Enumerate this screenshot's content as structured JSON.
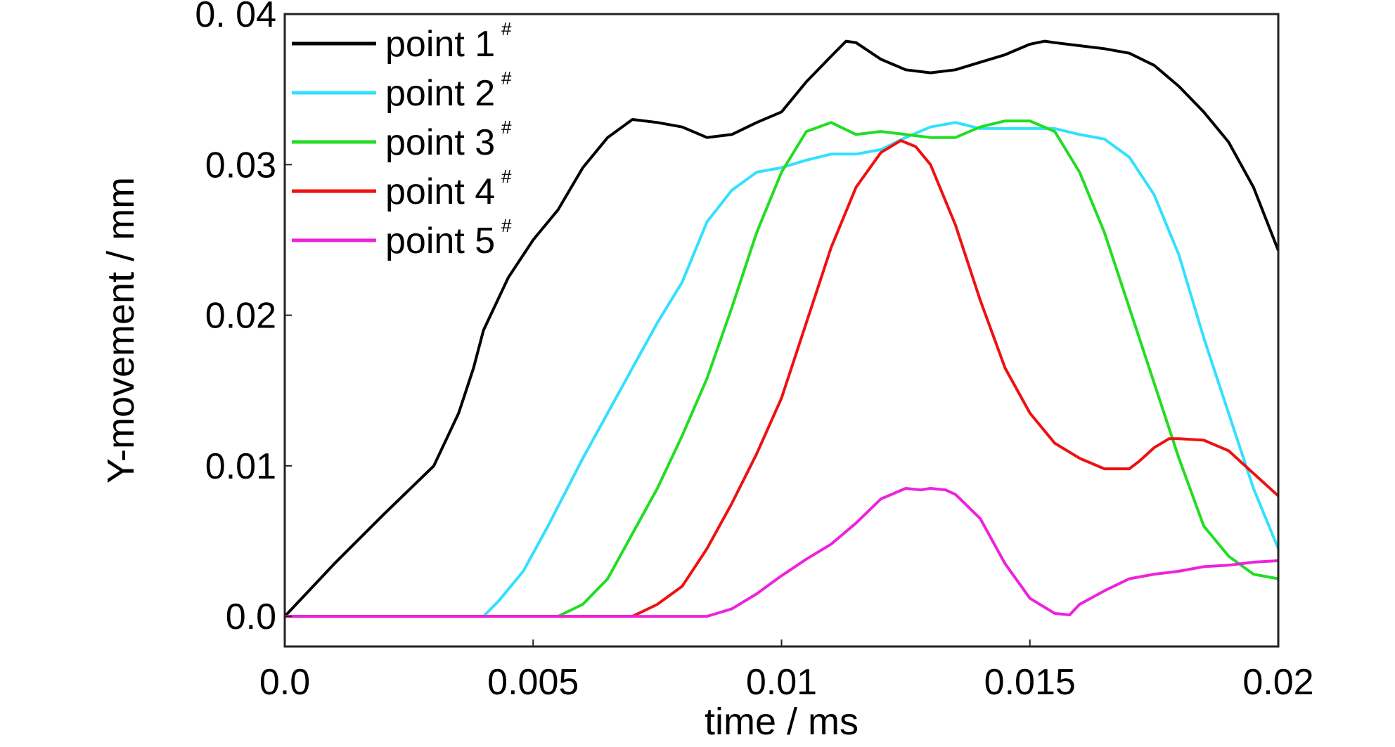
{
  "chart_data": {
    "type": "line",
    "xlabel": "time / ms",
    "ylabel": "Y-movement / mm",
    "xlim": [
      0,
      0.02
    ],
    "ylim": [
      -0.002,
      0.04
    ],
    "grid": false,
    "legend_position": "top-left",
    "x_ticks": [
      {
        "value": 0,
        "label": "0.0"
      },
      {
        "value": 0.005,
        "label": "0.005"
      },
      {
        "value": 0.01,
        "label": "0.01"
      },
      {
        "value": 0.015,
        "label": "0.015"
      },
      {
        "value": 0.02,
        "label": "0.02"
      }
    ],
    "y_ticks": [
      {
        "value": 0,
        "label": "0.0"
      },
      {
        "value": 0.01,
        "label": "0.01"
      },
      {
        "value": 0.02,
        "label": "0.02"
      },
      {
        "value": 0.03,
        "label": "0.03"
      },
      {
        "value": 0.04,
        "label": "0. 04"
      }
    ],
    "series": [
      {
        "name": "point 1",
        "name_sup": "#",
        "color": "#000000",
        "x": [
          0,
          0.001,
          0.002,
          0.003,
          0.0035,
          0.0038,
          0.004,
          0.0045,
          0.005,
          0.0055,
          0.006,
          0.0065,
          0.007,
          0.0075,
          0.008,
          0.0085,
          0.009,
          0.0095,
          0.01,
          0.0105,
          0.011,
          0.0113,
          0.0115,
          0.012,
          0.0125,
          0.013,
          0.0135,
          0.014,
          0.0145,
          0.015,
          0.0153,
          0.0155,
          0.016,
          0.0165,
          0.017,
          0.0175,
          0.018,
          0.0185,
          0.019,
          0.0195,
          0.02
        ],
        "y": [
          0,
          0.0035,
          0.0068,
          0.01,
          0.0135,
          0.0165,
          0.019,
          0.0225,
          0.025,
          0.027,
          0.0298,
          0.0318,
          0.033,
          0.0328,
          0.0325,
          0.0318,
          0.032,
          0.0328,
          0.0335,
          0.0355,
          0.0372,
          0.0382,
          0.0381,
          0.037,
          0.0363,
          0.0361,
          0.0363,
          0.0368,
          0.0373,
          0.038,
          0.0382,
          0.0381,
          0.0379,
          0.0377,
          0.0374,
          0.0366,
          0.0352,
          0.0335,
          0.0315,
          0.0285,
          0.0243
        ]
      },
      {
        "name": "point 2",
        "name_sup": "#",
        "color": "#33e0ff",
        "x": [
          0,
          0.004,
          0.0043,
          0.0048,
          0.0053,
          0.006,
          0.0065,
          0.007,
          0.0075,
          0.008,
          0.0085,
          0.009,
          0.0095,
          0.01,
          0.0105,
          0.011,
          0.0115,
          0.012,
          0.0125,
          0.013,
          0.0135,
          0.014,
          0.0145,
          0.015,
          0.0155,
          0.016,
          0.0165,
          0.017,
          0.0175,
          0.018,
          0.0185,
          0.019,
          0.0195,
          0.02
        ],
        "y": [
          0,
          0,
          0.001,
          0.003,
          0.006,
          0.0105,
          0.0135,
          0.0165,
          0.0195,
          0.0222,
          0.0262,
          0.0283,
          0.0295,
          0.0298,
          0.0303,
          0.0307,
          0.0307,
          0.031,
          0.0318,
          0.0325,
          0.0328,
          0.0324,
          0.0324,
          0.0324,
          0.0324,
          0.032,
          0.0317,
          0.0305,
          0.028,
          0.024,
          0.0185,
          0.0135,
          0.0085,
          0.0045
        ]
      },
      {
        "name": "point 3",
        "name_sup": "#",
        "color": "#22dd22",
        "x": [
          0,
          0.0055,
          0.006,
          0.0065,
          0.007,
          0.0075,
          0.008,
          0.0085,
          0.009,
          0.0095,
          0.01,
          0.0105,
          0.011,
          0.0115,
          0.012,
          0.0125,
          0.013,
          0.0135,
          0.014,
          0.0145,
          0.015,
          0.0155,
          0.016,
          0.0165,
          0.017,
          0.0175,
          0.018,
          0.0185,
          0.019,
          0.0195,
          0.02
        ],
        "y": [
          0,
          0,
          0.0008,
          0.0025,
          0.0055,
          0.0085,
          0.012,
          0.0158,
          0.0205,
          0.0255,
          0.0295,
          0.0322,
          0.0328,
          0.032,
          0.0322,
          0.032,
          0.0318,
          0.0318,
          0.0325,
          0.0329,
          0.0329,
          0.0322,
          0.0295,
          0.0255,
          0.0205,
          0.0155,
          0.0105,
          0.006,
          0.004,
          0.0028,
          0.0025
        ]
      },
      {
        "name": "point 4",
        "name_sup": "#",
        "color": "#ee1111",
        "x": [
          0,
          0.007,
          0.0075,
          0.008,
          0.0085,
          0.009,
          0.0095,
          0.01,
          0.0105,
          0.011,
          0.0115,
          0.012,
          0.0124,
          0.0127,
          0.013,
          0.0135,
          0.014,
          0.0145,
          0.015,
          0.0155,
          0.016,
          0.0165,
          0.017,
          0.0172,
          0.0175,
          0.0178,
          0.018,
          0.0185,
          0.019,
          0.0195,
          0.02
        ],
        "y": [
          0,
          0,
          0.0008,
          0.002,
          0.0045,
          0.0075,
          0.0108,
          0.0145,
          0.0195,
          0.0245,
          0.0285,
          0.0308,
          0.0316,
          0.0312,
          0.03,
          0.026,
          0.021,
          0.0165,
          0.0135,
          0.0115,
          0.0105,
          0.0098,
          0.0098,
          0.0103,
          0.0112,
          0.0118,
          0.0118,
          0.0117,
          0.011,
          0.0095,
          0.008
        ]
      },
      {
        "name": "point 5",
        "name_sup": "#",
        "color": "#ee22dd",
        "x": [
          0,
          0.0085,
          0.009,
          0.0095,
          0.01,
          0.0105,
          0.011,
          0.0115,
          0.012,
          0.0125,
          0.0128,
          0.013,
          0.0133,
          0.0135,
          0.014,
          0.0145,
          0.015,
          0.0155,
          0.0158,
          0.016,
          0.0165,
          0.017,
          0.0175,
          0.018,
          0.0185,
          0.019,
          0.0195,
          0.02
        ],
        "y": [
          0,
          0,
          0.0005,
          0.0015,
          0.0027,
          0.0038,
          0.0048,
          0.0062,
          0.0078,
          0.0085,
          0.0084,
          0.0085,
          0.0084,
          0.0081,
          0.0065,
          0.0035,
          0.0012,
          0.0002,
          0.0001,
          0.0008,
          0.0017,
          0.0025,
          0.0028,
          0.003,
          0.0033,
          0.0034,
          0.0036,
          0.0037
        ]
      }
    ]
  }
}
